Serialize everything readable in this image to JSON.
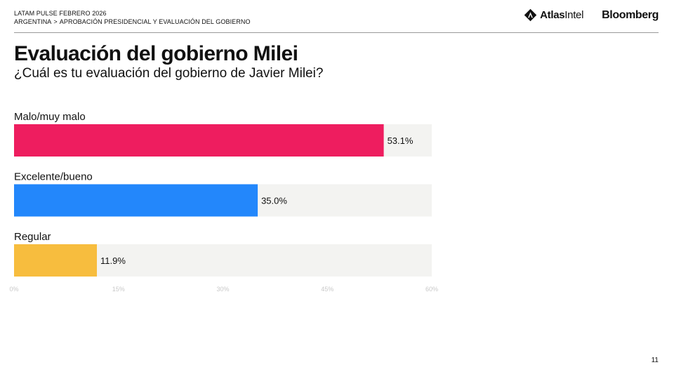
{
  "header": {
    "line1": "LATAM PULSE FEBRERO 2026",
    "crumb_country": "ARGENTINA",
    "crumb_separator": ">",
    "crumb_topic": "APROBACIÓN PRESIDENCIAL Y EVALUACIÓN DEL GOBIERNO"
  },
  "logos": {
    "atlas_prefix": "Atlas",
    "atlas_suffix": "Intel",
    "bloomberg": "Bloomberg"
  },
  "title": "Evaluación del gobierno Milei",
  "subtitle": "¿Cuál es tu evaluación del gobierno de Javier Milei?",
  "page_number": "11",
  "colors": {
    "track": "#f3f3f1",
    "tick_label": "#c8c8c8",
    "text": "#111111"
  },
  "chart_data": {
    "type": "bar",
    "orientation": "horizontal",
    "categories": [
      "Malo/muy malo",
      "Excelente/bueno",
      "Regular"
    ],
    "values": [
      53.1,
      35.0,
      11.9
    ],
    "value_labels": [
      "53.1%",
      "35.0%",
      "11.9%"
    ],
    "colors": [
      "#ee1d5f",
      "#2387fb",
      "#f7bd3e"
    ],
    "xlim": [
      0,
      60
    ],
    "ticks": [
      0,
      15,
      30,
      45,
      60
    ],
    "tick_labels": [
      "0%",
      "15%",
      "30%",
      "45%",
      "60%"
    ],
    "grid": false,
    "legend": "none"
  }
}
